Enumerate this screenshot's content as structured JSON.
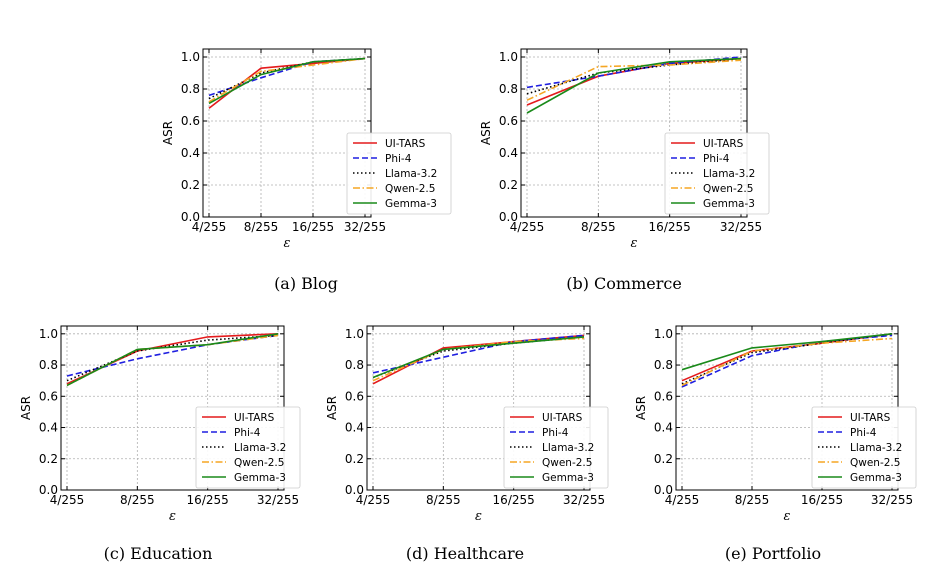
{
  "legend_entries": [
    {
      "name": "UI-TARS",
      "color": "#e41a1c",
      "style": "solid"
    },
    {
      "name": "Phi-4",
      "color": "#1f1fe0",
      "style": "dashed"
    },
    {
      "name": "Llama-3.2",
      "color": "#000000",
      "style": "dotted"
    },
    {
      "name": "Qwen-2.5",
      "color": "#f5a623",
      "style": "dashdot"
    },
    {
      "name": "Gemma-3",
      "color": "#1a8a1a",
      "style": "solid"
    }
  ],
  "chart_data": [
    {
      "type": "line",
      "caption": "(a)  Blog",
      "x": [
        "4/255",
        "8/255",
        "16/255",
        "32/255"
      ],
      "xlabel": "ε",
      "ylabel": "ASR",
      "ylim": [
        0.0,
        1.05
      ],
      "yticks": [
        "0.0",
        "0.2",
        "0.4",
        "0.6",
        "0.8",
        "1.0"
      ],
      "grid": true,
      "legend": "bottom-right",
      "series": [
        {
          "name": "UI-TARS",
          "values": [
            0.68,
            0.93,
            0.96,
            0.99
          ]
        },
        {
          "name": "Phi-4",
          "values": [
            0.76,
            0.87,
            0.97,
            0.99
          ]
        },
        {
          "name": "Llama-3.2",
          "values": [
            0.74,
            0.9,
            0.97,
            0.99
          ]
        },
        {
          "name": "Qwen-2.5",
          "values": [
            0.72,
            0.91,
            0.95,
            0.99
          ]
        },
        {
          "name": "Gemma-3",
          "values": [
            0.71,
            0.89,
            0.97,
            0.99
          ]
        }
      ]
    },
    {
      "type": "line",
      "caption": "(b)  Commerce",
      "x": [
        "4/255",
        "8/255",
        "16/255",
        "32/255"
      ],
      "xlabel": "ε",
      "ylabel": "ASR",
      "ylim": [
        0.0,
        1.05
      ],
      "yticks": [
        "0.0",
        "0.2",
        "0.4",
        "0.6",
        "0.8",
        "1.0"
      ],
      "grid": true,
      "legend": "bottom-right",
      "series": [
        {
          "name": "UI-TARS",
          "values": [
            0.7,
            0.88,
            0.96,
            0.99
          ]
        },
        {
          "name": "Phi-4",
          "values": [
            0.81,
            0.88,
            0.96,
            1.0
          ]
        },
        {
          "name": "Llama-3.2",
          "values": [
            0.77,
            0.9,
            0.95,
            0.99
          ]
        },
        {
          "name": "Qwen-2.5",
          "values": [
            0.73,
            0.94,
            0.95,
            0.98
          ]
        },
        {
          "name": "Gemma-3",
          "values": [
            0.65,
            0.9,
            0.97,
            0.99
          ]
        }
      ]
    },
    {
      "type": "line",
      "caption": "(c)  Education",
      "x": [
        "4/255",
        "8/255",
        "16/255",
        "32/255"
      ],
      "xlabel": "ε",
      "ylabel": "ASR",
      "ylim": [
        0.0,
        1.05
      ],
      "yticks": [
        "0.0",
        "0.2",
        "0.4",
        "0.6",
        "0.8",
        "1.0"
      ],
      "grid": true,
      "legend": "bottom-right",
      "series": [
        {
          "name": "UI-TARS",
          "values": [
            0.68,
            0.89,
            0.98,
            1.0
          ]
        },
        {
          "name": "Phi-4",
          "values": [
            0.73,
            0.84,
            0.93,
            0.99
          ]
        },
        {
          "name": "Llama-3.2",
          "values": [
            0.7,
            0.89,
            0.96,
            0.99
          ]
        },
        {
          "name": "Qwen-2.5",
          "values": [
            0.67,
            0.9,
            0.93,
            0.99
          ]
        },
        {
          "name": "Gemma-3",
          "values": [
            0.67,
            0.9,
            0.93,
            1.0
          ]
        }
      ]
    },
    {
      "type": "line",
      "caption": "(d)  Healthcare",
      "x": [
        "4/255",
        "8/255",
        "16/255",
        "32/255"
      ],
      "xlabel": "ε",
      "ylabel": "ASR",
      "ylim": [
        0.0,
        1.05
      ],
      "yticks": [
        "0.0",
        "0.2",
        "0.4",
        "0.6",
        "0.8",
        "1.0"
      ],
      "grid": true,
      "legend": "bottom-right",
      "series": [
        {
          "name": "UI-TARS",
          "values": [
            0.68,
            0.91,
            0.95,
            0.99
          ]
        },
        {
          "name": "Phi-4",
          "values": [
            0.75,
            0.85,
            0.95,
            0.99
          ]
        },
        {
          "name": "Llama-3.2",
          "values": [
            0.72,
            0.89,
            0.94,
            0.98
          ]
        },
        {
          "name": "Qwen-2.5",
          "values": [
            0.7,
            0.9,
            0.95,
            0.97
          ]
        },
        {
          "name": "Gemma-3",
          "values": [
            0.72,
            0.9,
            0.94,
            0.98
          ]
        }
      ]
    },
    {
      "type": "line",
      "caption": "(e)  Portfolio",
      "x": [
        "4/255",
        "8/255",
        "16/255",
        "32/255"
      ],
      "xlabel": "ε",
      "ylabel": "ASR",
      "ylim": [
        0.0,
        1.05
      ],
      "yticks": [
        "0.0",
        "0.2",
        "0.4",
        "0.6",
        "0.8",
        "1.0"
      ],
      "grid": true,
      "legend": "bottom-right",
      "series": [
        {
          "name": "UI-TARS",
          "values": [
            0.7,
            0.89,
            0.94,
            1.0
          ]
        },
        {
          "name": "Phi-4",
          "values": [
            0.66,
            0.86,
            0.95,
            0.99
          ]
        },
        {
          "name": "Llama-3.2",
          "values": [
            0.68,
            0.88,
            0.94,
            1.0
          ]
        },
        {
          "name": "Qwen-2.5",
          "values": [
            0.67,
            0.89,
            0.94,
            0.97
          ]
        },
        {
          "name": "Gemma-3",
          "values": [
            0.77,
            0.91,
            0.95,
            1.0
          ]
        }
      ]
    }
  ]
}
